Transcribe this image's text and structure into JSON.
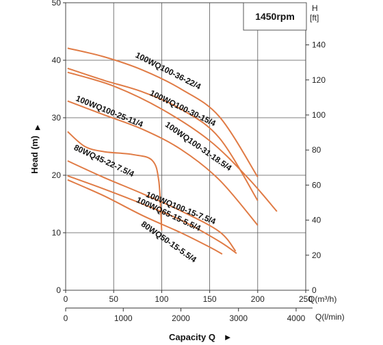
{
  "chart_data": {
    "type": "line",
    "speed_label": "1450rpm",
    "ylabel": "Head (m)",
    "ylabel_arrow": "▲",
    "xlabel": "Capacity Q",
    "xlabel_arrow": "►",
    "x_unit_primary": "Q(m³/h)",
    "x_unit_secondary": "Q(l/min)",
    "y_unit_secondary_top": "H",
    "y_unit_secondary_bottom": "[ft]",
    "x_ticks_primary": [
      0,
      50,
      100,
      150,
      200,
      250
    ],
    "x_ticks_secondary": [
      0,
      1000,
      2000,
      3000,
      4000
    ],
    "y_ticks_primary": [
      0,
      10,
      20,
      30,
      40,
      50
    ],
    "y_ticks_secondary": [
      0,
      20,
      40,
      60,
      80,
      100,
      120,
      140
    ],
    "xlim": [
      0,
      250
    ],
    "ylim": [
      0,
      50
    ],
    "grid": true,
    "curve_color": "#e07b45",
    "series": [
      {
        "name": "100WQ100-36-22/4",
        "points": [
          [
            2,
            42.1
          ],
          [
            40,
            40.6
          ],
          [
            80,
            38.3
          ],
          [
            120,
            35.0
          ],
          [
            160,
            30.2
          ],
          [
            200,
            19.7
          ]
        ]
      },
      {
        "name": "100WQ100-30-15/4",
        "points": [
          [
            2,
            38.6
          ],
          [
            40,
            36.5
          ],
          [
            80,
            34.5
          ],
          [
            120,
            31.5
          ],
          [
            160,
            26.5
          ],
          [
            200,
            15.6
          ]
        ]
      },
      {
        "name": "100WQ100-31-18.5/4",
        "points": [
          [
            2,
            37.9
          ],
          [
            50,
            35.5
          ],
          [
            100,
            31.5
          ],
          [
            150,
            26.0
          ],
          [
            190,
            19.5
          ],
          [
            220,
            13.7
          ]
        ]
      },
      {
        "name": "100WQ100-25-11/4",
        "points": [
          [
            2,
            32.9
          ],
          [
            40,
            30.5
          ],
          [
            80,
            28.0
          ],
          [
            120,
            24.5
          ],
          [
            160,
            19.2
          ],
          [
            200,
            11.3
          ]
        ]
      },
      {
        "name": "80WQ45-22-7.5/4",
        "points": [
          [
            2,
            27.6
          ],
          [
            20,
            25.0
          ],
          [
            40,
            24.1
          ],
          [
            70,
            23.6
          ],
          [
            90,
            22.6
          ],
          [
            97,
            19.0
          ],
          [
            100,
            10.4
          ]
        ]
      },
      {
        "name": "100WQ100-15-7.5/4",
        "points": [
          [
            2,
            22.5
          ],
          [
            40,
            19.6
          ],
          [
            80,
            16.8
          ],
          [
            120,
            13.8
          ],
          [
            160,
            10.2
          ],
          [
            177,
            6.8
          ]
        ]
      },
      {
        "name": "100WQ65-15-5.5/4",
        "points": [
          [
            2,
            19.9
          ],
          [
            40,
            17.6
          ],
          [
            80,
            15.0
          ],
          [
            120,
            12.2
          ],
          [
            160,
            8.5
          ],
          [
            178,
            6.4
          ]
        ]
      },
      {
        "name": "80WQ50-15-5.5/4",
        "points": [
          [
            2,
            19.2
          ],
          [
            40,
            16.4
          ],
          [
            80,
            13.0
          ],
          [
            120,
            10.0
          ],
          [
            150,
            7.5
          ],
          [
            163,
            6.3
          ]
        ]
      }
    ],
    "curve_labels": [
      {
        "text": "100WQ100-36-22/4",
        "x": 72,
        "y": 40.6,
        "angle": 27
      },
      {
        "text": "100WQ100-30-15/4",
        "x": 87,
        "y": 34.0,
        "angle": 26
      },
      {
        "text": "100WQ100-25-11/4",
        "x": 10,
        "y": 33.0,
        "angle": 22
      },
      {
        "text": "100WQ100-31-18.5/4",
        "x": 103,
        "y": 28.6,
        "angle": 35
      },
      {
        "text": "80WQ45-22-7.5/4",
        "x": 8,
        "y": 24.5,
        "angle": 25
      },
      {
        "text": "100WQ100-15-7.5/4",
        "x": 83,
        "y": 16.3,
        "angle": 22
      },
      {
        "text": "100WQ65-15-5.5/4",
        "x": 73,
        "y": 15.4,
        "angle": 25
      },
      {
        "text": "80WQ50-15-5.5/4",
        "x": 78,
        "y": 11.3,
        "angle": 35
      }
    ]
  }
}
